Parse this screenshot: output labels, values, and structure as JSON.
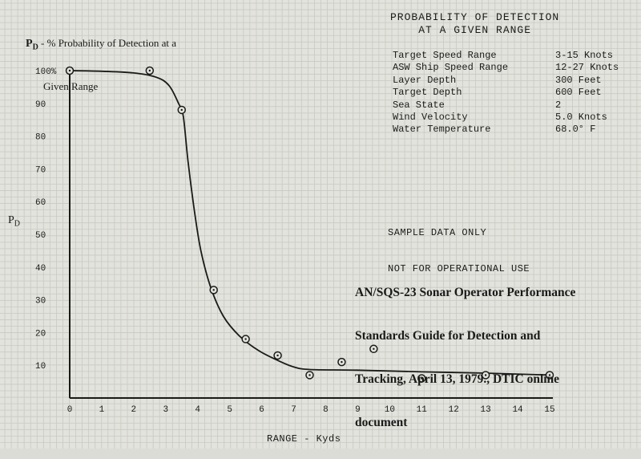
{
  "chart_data": {
    "type": "scatter",
    "title": "PROBABILITY OF DETECTION\nAT A GIVEN RANGE",
    "ylabel_top": "PD - % Probability of Detection at a Given Range",
    "ylabel_top_lines": [
      "P",
      "D",
      " - % Probability of Detection at a",
      "Given Range"
    ],
    "ylabel_side": "PD",
    "xlabel": "RANGE - Kyds",
    "x_ticks": [
      "0",
      "1",
      "2",
      "3",
      "4",
      "5",
      "6",
      "7",
      "8",
      "9",
      "10",
      "11",
      "12",
      "13",
      "14",
      "15"
    ],
    "y_ticks": [
      "100%",
      "90",
      "80",
      "70",
      "60",
      "50",
      "40",
      "30",
      "20",
      "10"
    ],
    "xlim": [
      0,
      15
    ],
    "ylim": [
      0,
      100
    ],
    "grid": true,
    "points": [
      {
        "x": 0,
        "y": 100
      },
      {
        "x": 2.5,
        "y": 100
      },
      {
        "x": 3.5,
        "y": 88
      },
      {
        "x": 4.5,
        "y": 33
      },
      {
        "x": 5.5,
        "y": 18
      },
      {
        "x": 6.5,
        "y": 13
      },
      {
        "x": 7.5,
        "y": 7
      },
      {
        "x": 8.5,
        "y": 11
      },
      {
        "x": 9.5,
        "y": 15
      },
      {
        "x": 11,
        "y": 6
      },
      {
        "x": 13,
        "y": 7
      },
      {
        "x": 15,
        "y": 7
      }
    ],
    "curve": [
      [
        0,
        100
      ],
      [
        1,
        99.8
      ],
      [
        2,
        99.3
      ],
      [
        2.7,
        98
      ],
      [
        3.1,
        95.5
      ],
      [
        3.4,
        90
      ],
      [
        3.55,
        86
      ],
      [
        3.7,
        72
      ],
      [
        3.9,
        57
      ],
      [
        4.1,
        45
      ],
      [
        4.4,
        34
      ],
      [
        4.8,
        25
      ],
      [
        5.3,
        19
      ],
      [
        5.9,
        14.5
      ],
      [
        6.5,
        11.5
      ],
      [
        7.0,
        9.5
      ],
      [
        7.5,
        8.7
      ],
      [
        9,
        8.5
      ],
      [
        11,
        8.0
      ],
      [
        13,
        7.6
      ],
      [
        15,
        7.0
      ]
    ]
  },
  "conditions": {
    "names": [
      "Target Speed Range",
      "ASW Ship Speed Range",
      "Layer Depth",
      "Target Depth",
      "Sea State",
      "Wind Velocity",
      "Water Temperature"
    ],
    "values": [
      "3-15 Knots",
      "12-27 Knots",
      "300 Feet",
      "600 Feet",
      "2",
      "5.0 Knots",
      "68.0° F"
    ]
  },
  "sample_notice": [
    "SAMPLE DATA ONLY",
    "NOT FOR OPERATIONAL USE"
  ],
  "citation": [
    "AN/SQS-23 Sonar Operator Performance",
    "Standards Guide for Detection and",
    "Tracking, April 13, 1979., DTIC online",
    "document"
  ],
  "colors": {
    "paper": "#e3e3dd",
    "grid": "#c9c9c3",
    "ink": "#1a1a1a"
  }
}
